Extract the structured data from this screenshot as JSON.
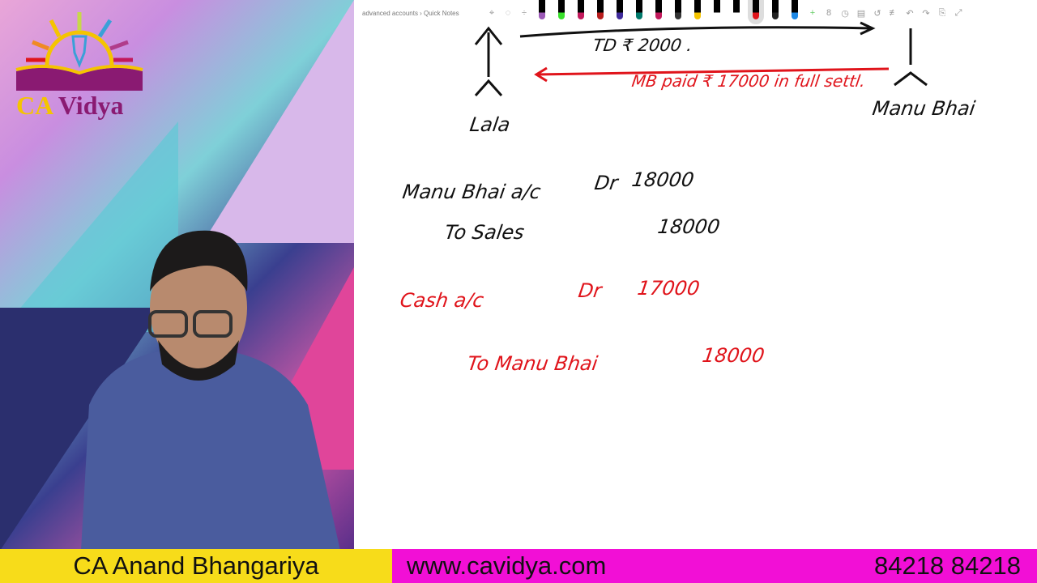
{
  "logo": {
    "text_ca": "CA",
    "text_vidya": "Vidya"
  },
  "toolbar": {
    "breadcrumb": "advanced accounts › Quick Notes",
    "pen_colors": [
      "#9b59b6",
      "#38e02a",
      "#c2185b",
      "#b71c1c",
      "#3f2a9b",
      "#00796b",
      "#c2185b",
      "#333333",
      "#f5c400",
      "#ffffff",
      "#ffffff",
      "#e0141b",
      "#222222",
      "#1e88e5"
    ],
    "tools_left": [
      "lasso-icon",
      "eraser-icon",
      "add-space-icon"
    ],
    "tools_right": [
      "add-pen-icon",
      "ink-to-shape-icon",
      "ink-to-text-icon",
      "ink-to-math-icon",
      "replay-icon",
      "ruler-icon",
      "undo-icon",
      "redo-icon",
      "full-page-icon",
      "expand-icon"
    ]
  },
  "board": {
    "lala": "Lala",
    "manu_bhai_top": "Manu Bhai",
    "td": "TD ₹ 2000 .",
    "mb_paid": "MB paid ₹ 17000 in full settl.",
    "j1_debit": "Manu Bhai a/c",
    "j1_dr": "Dr",
    "j1_amount": "18000",
    "j1_credit": "To Sales",
    "j1_credit_amount": "18000",
    "j2_debit": "Cash a/c",
    "j2_dr": "Dr",
    "j2_amount": "17000",
    "j2_credit": "To Manu Bhai",
    "j2_credit_amount": "18000"
  },
  "banner": {
    "name": "CA Anand Bhangariya",
    "website": "www.cavidya.com",
    "phone": "84218 84218"
  },
  "colors": {
    "yellow": "#f7dc1a",
    "magenta": "#f20fd6",
    "ink_red": "#e0141b"
  }
}
